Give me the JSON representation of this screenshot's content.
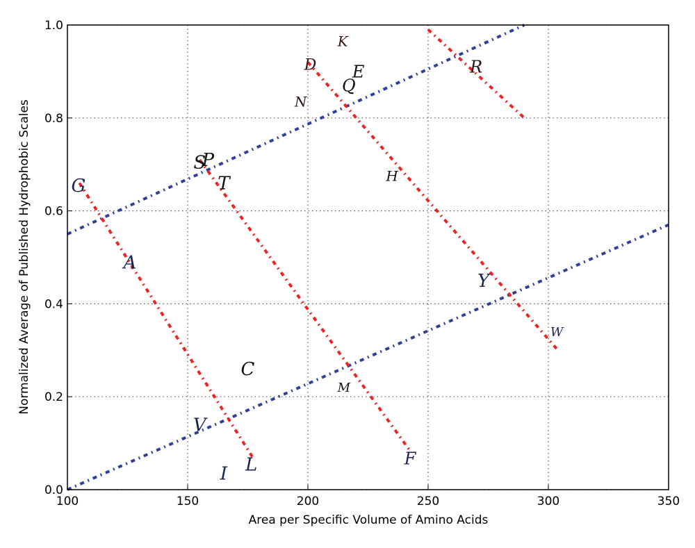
{
  "chart_data": {
    "type": "scatter",
    "title": "",
    "xlabel": "Area per Specific Volume of Amino Acids",
    "ylabel": "Normalized Average of Published Hydrophobic Scales",
    "xlim": [
      100,
      350
    ],
    "ylim": [
      0.0,
      1.0
    ],
    "grid": true,
    "xticks": [
      "100",
      "150",
      "200",
      "250",
      "300",
      "350"
    ],
    "yticks": [
      "0.0",
      "0.2",
      "0.4",
      "0.6",
      "0.8",
      "1.0"
    ],
    "points": [
      {
        "label": "G",
        "x": 104.6,
        "y": 0.655,
        "size": 26,
        "color": "#1c2356"
      },
      {
        "label": "A",
        "x": 126,
        "y": 0.49,
        "size": 26,
        "color": "#1c2356"
      },
      {
        "label": "S",
        "x": 155,
        "y": 0.705,
        "size": 26,
        "color": "#111111"
      },
      {
        "label": "P",
        "x": 158.5,
        "y": 0.71,
        "size": 26,
        "color": "#111111"
      },
      {
        "label": "T",
        "x": 165,
        "y": 0.66,
        "size": 26,
        "color": "#111111"
      },
      {
        "label": "C",
        "x": 175,
        "y": 0.26,
        "size": 26,
        "color": "#111111"
      },
      {
        "label": "V",
        "x": 155,
        "y": 0.14,
        "size": 26,
        "color": "#1c2356"
      },
      {
        "label": "I",
        "x": 165,
        "y": 0.035,
        "size": 26,
        "color": "#1c2356"
      },
      {
        "label": "L",
        "x": 176.5,
        "y": 0.055,
        "size": 26,
        "color": "#1c2356"
      },
      {
        "label": "N",
        "x": 197,
        "y": 0.835,
        "size": 20,
        "color": "#2a1414"
      },
      {
        "label": "D",
        "x": 201,
        "y": 0.915,
        "size": 22,
        "color": "#3a1414"
      },
      {
        "label": "K",
        "x": 214.5,
        "y": 0.965,
        "size": 20,
        "color": "#3a1414"
      },
      {
        "label": "E",
        "x": 221,
        "y": 0.9,
        "size": 24,
        "color": "#111111"
      },
      {
        "label": "Q",
        "x": 217,
        "y": 0.87,
        "size": 24,
        "color": "#111111"
      },
      {
        "label": "H",
        "x": 235,
        "y": 0.675,
        "size": 20,
        "color": "#111111"
      },
      {
        "label": "M",
        "x": 215,
        "y": 0.22,
        "size": 18,
        "color": "#111111"
      },
      {
        "label": "F",
        "x": 242.5,
        "y": 0.067,
        "size": 24,
        "color": "#1c2356"
      },
      {
        "label": "Y",
        "x": 273,
        "y": 0.45,
        "size": 26,
        "color": "#1c2356"
      },
      {
        "label": "R",
        "x": 270,
        "y": 0.91,
        "size": 24,
        "color": "#2a1414"
      },
      {
        "label": "W",
        "x": 303.5,
        "y": 0.34,
        "size": 18,
        "color": "#1c2356"
      }
    ],
    "lines": [
      {
        "name": "blue-upper",
        "color": "#2f3f9a",
        "x": [
          100,
          290
        ],
        "y": [
          0.55,
          1.0
        ]
      },
      {
        "name": "blue-lower",
        "color": "#2f3f9a",
        "x": [
          100,
          350
        ],
        "y": [
          0.0,
          0.57
        ]
      },
      {
        "name": "red-1",
        "color": "#ee2222",
        "x": [
          105,
          177
        ],
        "y": [
          0.66,
          0.07
        ]
      },
      {
        "name": "red-2",
        "color": "#ee2222",
        "x": [
          155,
          243
        ],
        "y": [
          0.71,
          0.08
        ]
      },
      {
        "name": "red-3",
        "color": "#ee2222",
        "x": [
          200,
          304
        ],
        "y": [
          0.92,
          0.3
        ]
      },
      {
        "name": "red-4",
        "color": "#ee2222",
        "x": [
          250,
          290
        ],
        "y": [
          0.99,
          0.8
        ]
      }
    ]
  }
}
